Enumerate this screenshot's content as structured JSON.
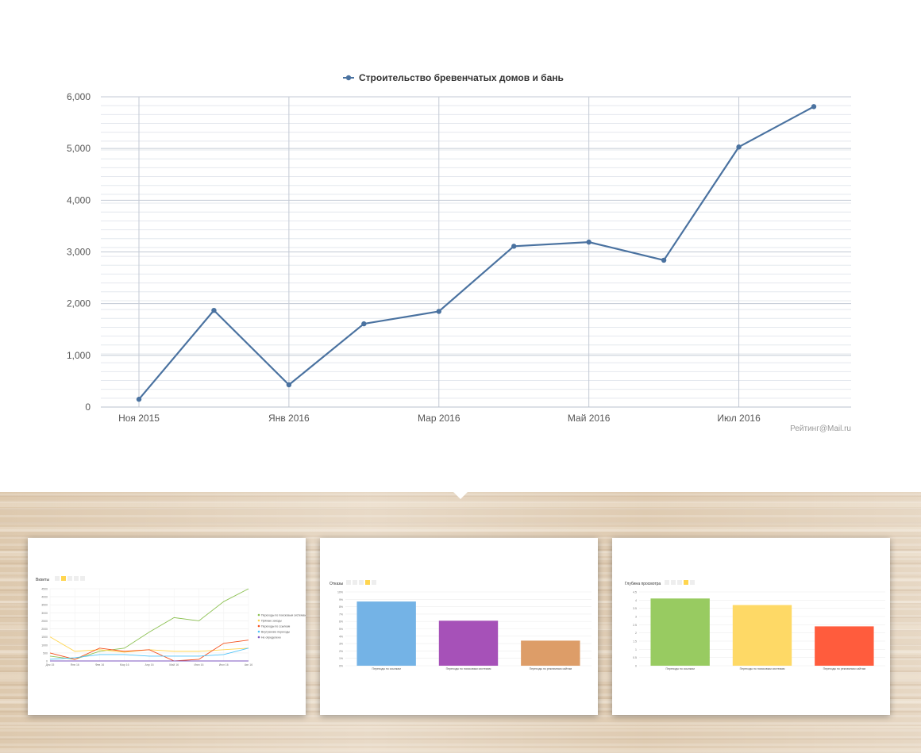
{
  "chart_data": [
    {
      "type": "line",
      "legend_position": "top-center",
      "grid": true,
      "x": [
        "Ноя 2015",
        "Дек 2015",
        "Янв 2016",
        "Фев 2016",
        "Мар 2016",
        "Апр 2016",
        "Май 2016",
        "Июн 2016",
        "Июл 2016",
        "Авг 2016"
      ],
      "xticks": [
        "Ноя 2015",
        "Янв 2016",
        "Мар 2016",
        "Май 2016",
        "Июл 2016"
      ],
      "yticks": [
        "0",
        "1,000",
        "2,000",
        "3,000",
        "4,000",
        "5,000",
        "6,000"
      ],
      "ylim": [
        0,
        6000
      ],
      "series": [
        {
          "name": "Строительство бревенчатых домов и бань",
          "color": "#4a72a0",
          "values": [
            150,
            1870,
            430,
            1610,
            1850,
            3110,
            3190,
            2840,
            5030,
            5810
          ]
        }
      ],
      "credit": "Рейтинг@Mail.ru"
    },
    {
      "type": "line",
      "title": "Визиты",
      "grid": true,
      "legend_position": "right",
      "x": [
        "Дек 15",
        "Янв 16",
        "Фев 16",
        "Мар 16",
        "Апр 16",
        "Май 16",
        "Июн 16",
        "Июл 16",
        "Авг 16"
      ],
      "yticks": [
        "0",
        "500",
        "1000",
        "1500",
        "2000",
        "2500",
        "3000",
        "3500",
        "4000",
        "4500"
      ],
      "ylim": [
        0,
        4500
      ],
      "series": [
        {
          "name": "Переходы по поисковым системам",
          "color": "#8cc152",
          "values": [
            300,
            100,
            600,
            800,
            1800,
            2700,
            2500,
            3700,
            4500
          ]
        },
        {
          "name": "Прямые заходы",
          "color": "#ffd54f",
          "values": [
            1500,
            600,
            700,
            550,
            700,
            600,
            600,
            700,
            800
          ]
        },
        {
          "name": "Переходы по ссылкам",
          "color": "#f4511e",
          "values": [
            500,
            100,
            800,
            600,
            700,
            0,
            100,
            1100,
            1300
          ]
        },
        {
          "name": "Внутренние переходы",
          "color": "#4fc3f7",
          "values": [
            100,
            200,
            400,
            400,
            300,
            300,
            300,
            400,
            800
          ]
        },
        {
          "name": "Не определено",
          "color": "#7e57c2",
          "values": [
            0,
            0,
            0,
            0,
            0,
            0,
            0,
            0,
            0
          ]
        }
      ]
    },
    {
      "type": "bar",
      "title": "Отказы",
      "grid": true,
      "categories": [
        "Переходы по ссылкам",
        "Переходы по поисковым системам",
        "Переходы по рекламным сайтам"
      ],
      "colors": [
        "#74b3e6",
        "#a651b8",
        "#dd9d68"
      ],
      "values": [
        8.7,
        6.1,
        3.4
      ],
      "yticks": [
        "0%",
        "1%",
        "2%",
        "3%",
        "4%",
        "5%",
        "6%",
        "7%",
        "8%",
        "9%",
        "10%"
      ],
      "ylim": [
        0,
        10
      ]
    },
    {
      "type": "bar",
      "title": "Глубина просмотра",
      "grid": true,
      "categories": [
        "Переходы по ссылкам",
        "Переходы по поисковым системам",
        "Переходы по рекламным сайтам"
      ],
      "colors": [
        "#98cb61",
        "#fed966",
        "#ff5c3d"
      ],
      "values": [
        4.1,
        3.7,
        2.4
      ],
      "yticks": [
        "0",
        "0.5",
        "1",
        "1.5",
        "2",
        "2.5",
        "3",
        "3.5",
        "4",
        "4.5"
      ],
      "ylim": [
        0,
        4.5
      ]
    }
  ]
}
